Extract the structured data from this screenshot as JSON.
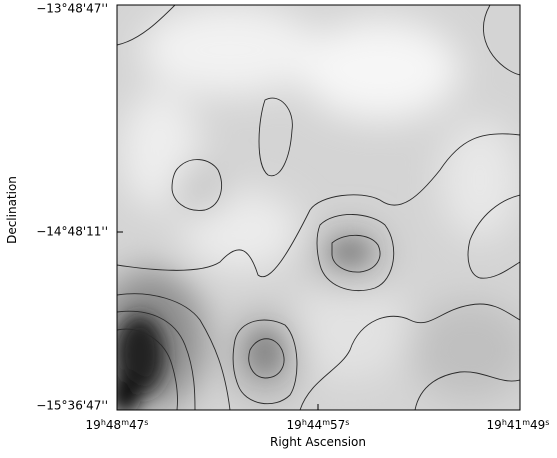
{
  "image": {
    "y_axis_label": "Declination",
    "x_axis_label": "Right Ascension",
    "y_ticks": [
      "−13°48'47''",
      "−14°48'11''",
      "−15°36'47''"
    ],
    "x_ticks": [
      [
        "19",
        "h",
        "48",
        "m",
        "47",
        "s"
      ],
      [
        "19",
        "h",
        "44",
        "m",
        "57",
        "s"
      ],
      [
        "19",
        "h",
        "41",
        "m",
        "49",
        "s"
      ]
    ]
  }
}
